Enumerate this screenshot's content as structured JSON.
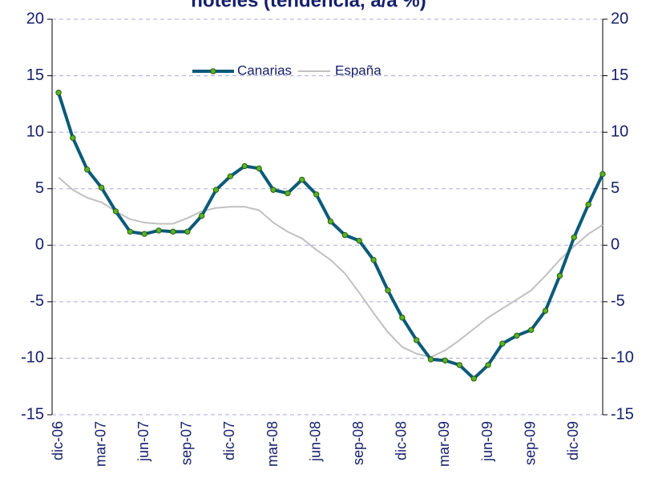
{
  "chart_data": {
    "type": "line",
    "title": "hoteles (tendencia, a/a %)",
    "categories": [
      "dic-06",
      null,
      null,
      "mar-07",
      null,
      null,
      "jun-07",
      null,
      null,
      "sep-07",
      null,
      null,
      "dic-07",
      null,
      null,
      "mar-08",
      null,
      null,
      "jun-08",
      null,
      null,
      "sep-08",
      null,
      null,
      "dic-08",
      null,
      null,
      "mar-09",
      null,
      null,
      "jun-09",
      null,
      null,
      "sep-09",
      null,
      null,
      "dic-09",
      null,
      null
    ],
    "series": [
      {
        "name": "Canarias",
        "color": "#0b5a78",
        "marker_color": "#56b526",
        "values": [
          13.5,
          9.5,
          6.7,
          5.1,
          3.0,
          1.2,
          1.0,
          1.3,
          1.2,
          1.2,
          2.6,
          4.9,
          6.1,
          7.0,
          6.8,
          4.9,
          4.6,
          5.8,
          4.5,
          2.1,
          0.9,
          0.4,
          -1.3,
          -4.0,
          -6.4,
          -8.4,
          -10.1,
          -10.2,
          -10.6,
          -11.8,
          -10.6,
          -8.7,
          -8.0,
          -7.5,
          -5.8,
          -2.7,
          0.7,
          3.6,
          6.3
        ]
      },
      {
        "name": "España",
        "color": "#c0c0c0",
        "values": [
          6.0,
          4.9,
          4.2,
          3.8,
          3.0,
          2.3,
          2.0,
          1.9,
          1.9,
          2.4,
          3.0,
          3.3,
          3.4,
          3.4,
          3.1,
          2.0,
          1.2,
          0.6,
          -0.4,
          -1.3,
          -2.5,
          -4.2,
          -6.0,
          -7.7,
          -9.0,
          -9.6,
          -9.9,
          -9.3,
          -8.4,
          -7.4,
          -6.4,
          -5.6,
          -4.8,
          -4.0,
          -2.7,
          -1.3,
          -0.1,
          1.0,
          1.8
        ]
      }
    ],
    "ylim": [
      -15,
      20
    ],
    "yticks": [
      -15,
      -10,
      -5,
      0,
      5,
      10,
      15,
      20
    ],
    "y2lim": [
      -15,
      20
    ],
    "y2ticks": [
      -15,
      -10,
      -5,
      0,
      5,
      10,
      15,
      20
    ],
    "grid": true,
    "legend": "top"
  }
}
